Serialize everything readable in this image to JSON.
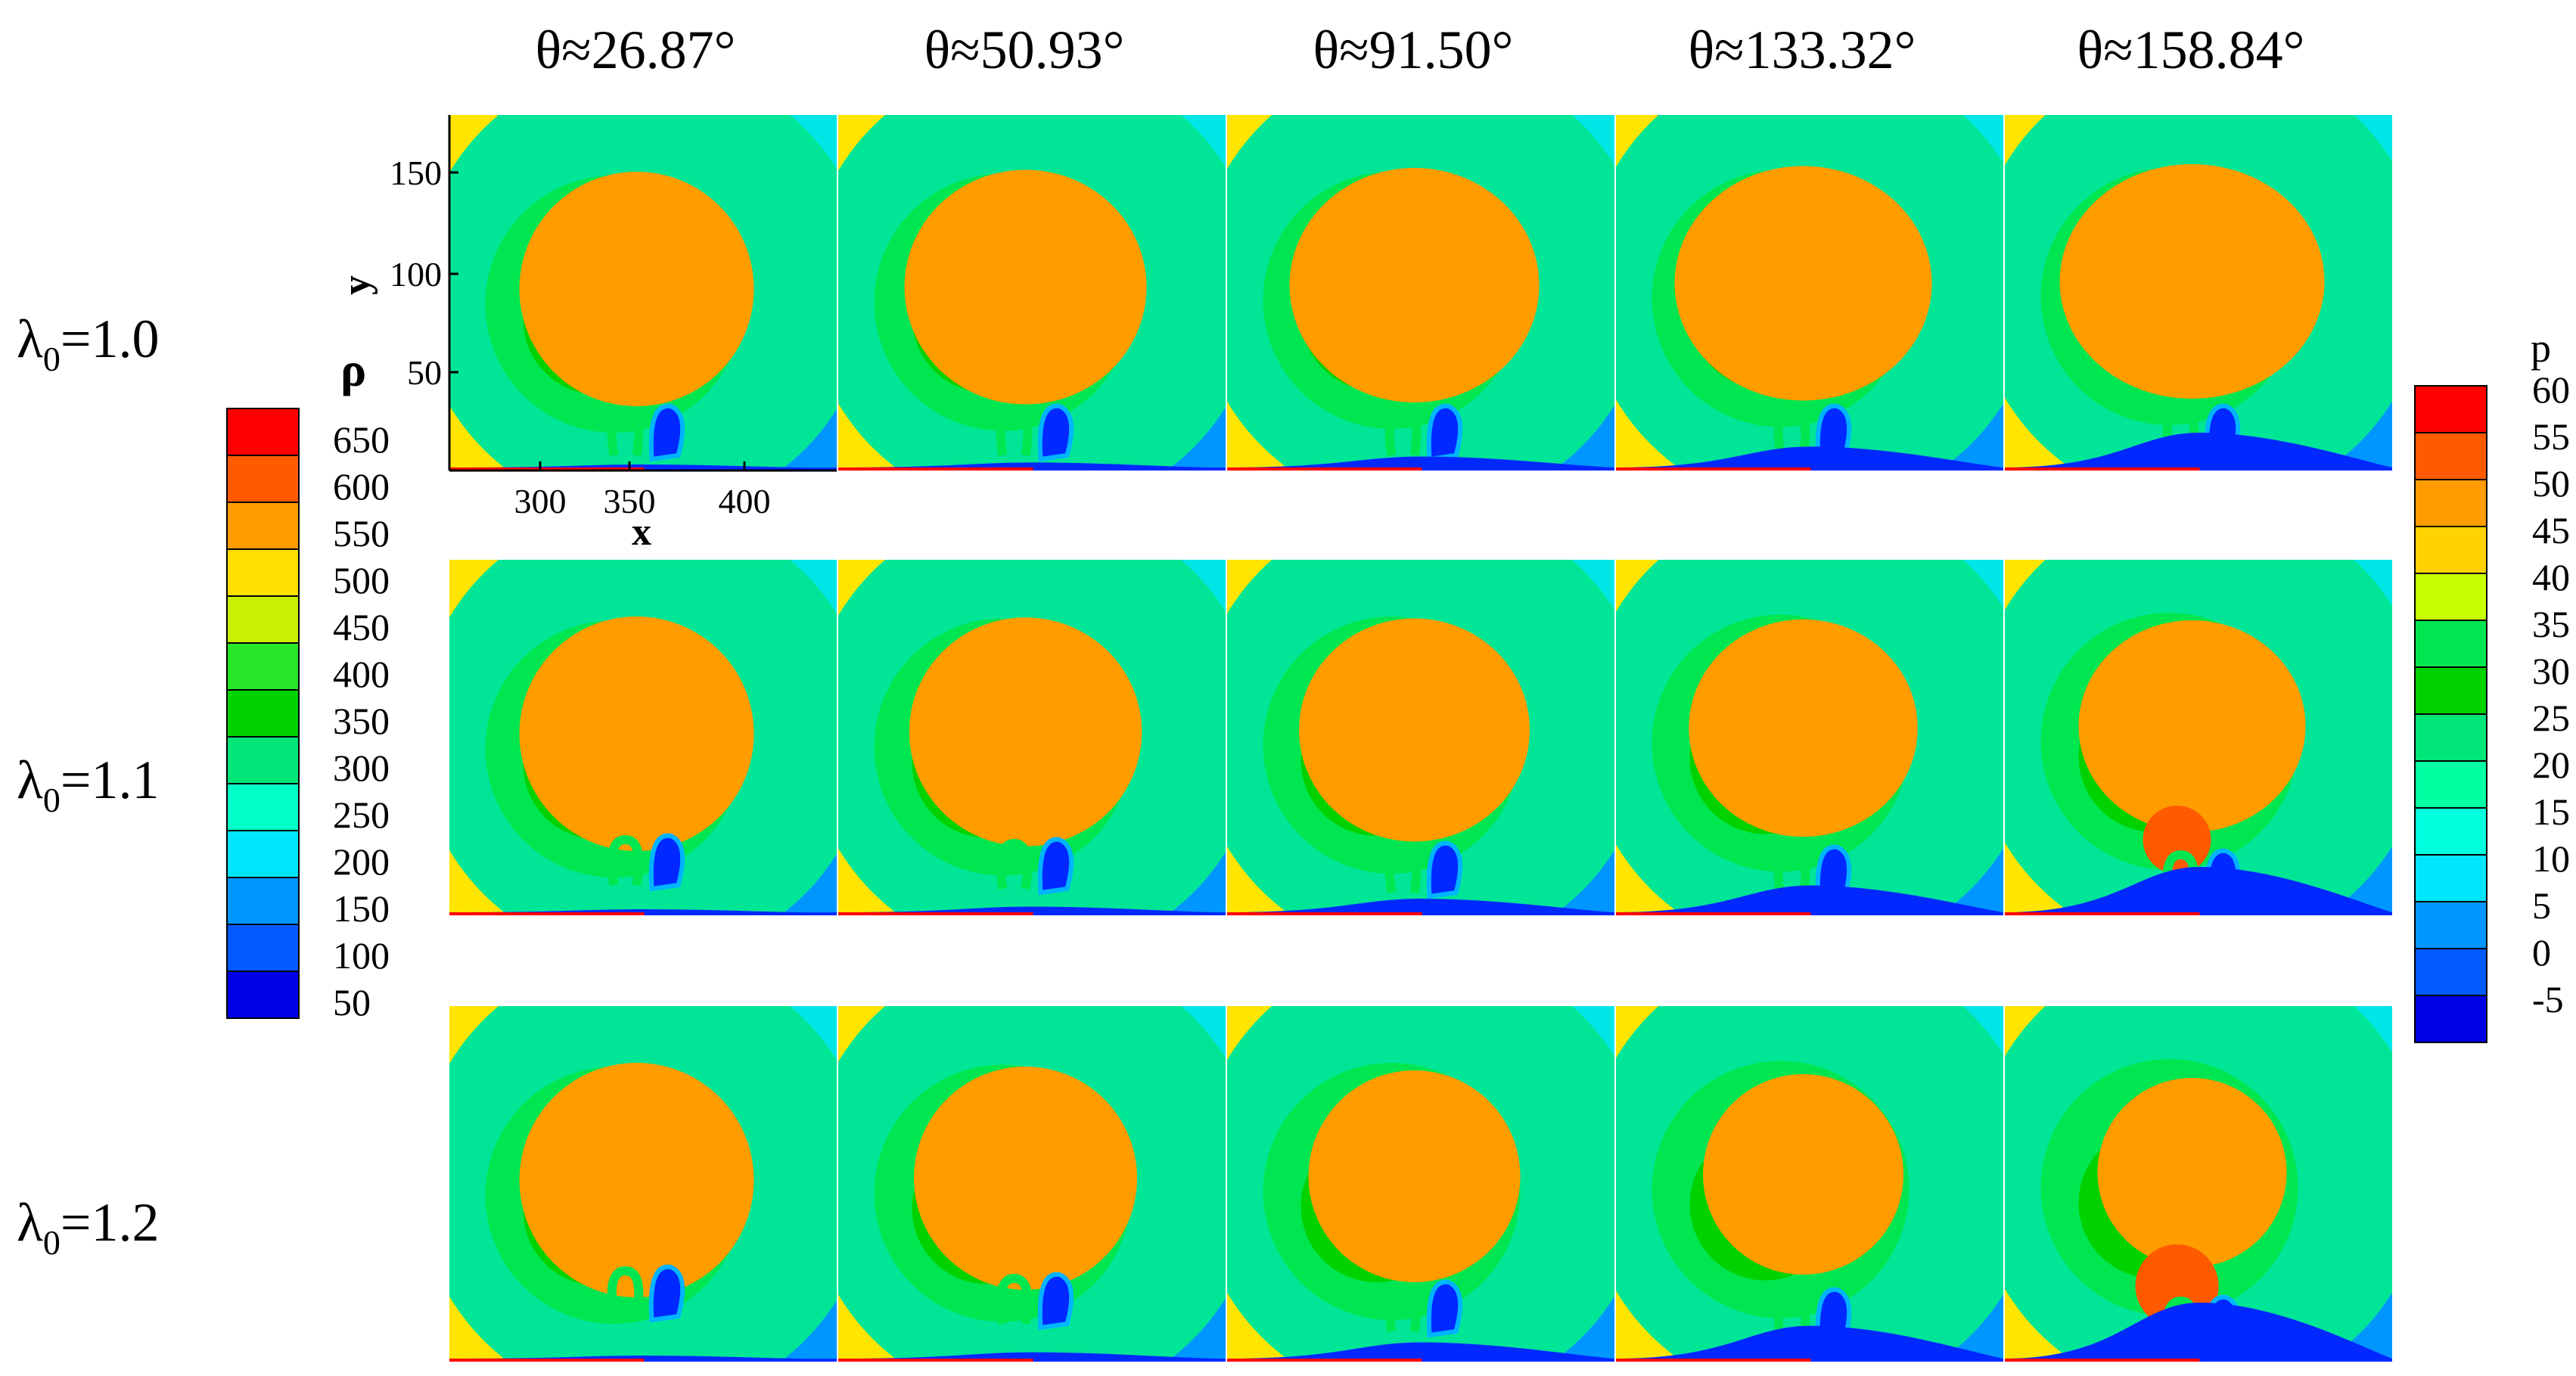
{
  "figure": {
    "column_labels": [
      "θ≈26.87°",
      "θ≈50.93°",
      "θ≈91.50°",
      "θ≈133.32°",
      "θ≈158.84°"
    ],
    "row_labels": [
      {
        "symbol": "λ",
        "subscript": "0",
        "value": "=1.0"
      },
      {
        "symbol": "λ",
        "subscript": "0",
        "value": "=1.1"
      },
      {
        "symbol": "λ",
        "subscript": "0",
        "value": "=1.2"
      }
    ],
    "panel_left_field": "ρ",
    "panel_right_field": "p",
    "axes": {
      "x_label": "x",
      "y_label": "y",
      "x_ticks": [
        "300",
        "350",
        "400"
      ],
      "y_ticks": [
        "150",
        "100",
        "50"
      ]
    },
    "density_colorbar": {
      "label": "ρ",
      "levels": [
        "650",
        "600",
        "550",
        "500",
        "450",
        "400",
        "350",
        "300",
        "250",
        "200",
        "150",
        "100",
        "50"
      ],
      "colors": [
        "#ff0000",
        "#ff5a00",
        "#ff9c00",
        "#ffe000",
        "#c8f000",
        "#28e628",
        "#00d200",
        "#00e678",
        "#00ffc8",
        "#00e6ff",
        "#0096ff",
        "#005aff",
        "#0000e6"
      ]
    },
    "pressure_colorbar": {
      "label": "p",
      "levels": [
        "60",
        "55",
        "50",
        "45",
        "40",
        "35",
        "30",
        "25",
        "20",
        "15",
        "10",
        "5",
        "0",
        "-5"
      ],
      "colors": [
        "#ff0000",
        "#ff5a00",
        "#ff9c00",
        "#ffd200",
        "#c8ff00",
        "#00e650",
        "#00d200",
        "#00e678",
        "#00ffa0",
        "#00ffdc",
        "#00e6ff",
        "#0096ff",
        "#005aff",
        "#0000e6"
      ]
    },
    "palette": {
      "gas_yellow": "#ffe500",
      "bubble_orange": "#ff9c00",
      "outer_cyan": "#00e6e6",
      "ring_teal": "#00e696",
      "ring_green": "#00e650",
      "core_green": "#00d200",
      "jet_blue": "#0028ff",
      "jet_light": "#00b4ff",
      "wall_red": "#ff0000",
      "far_blue": "#0096ff",
      "hot_core": "#ff5a00"
    }
  }
}
